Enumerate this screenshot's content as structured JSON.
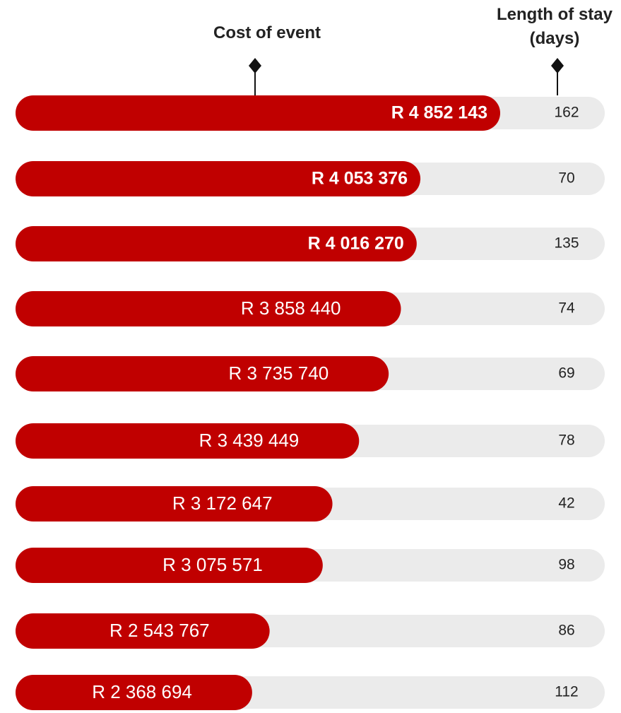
{
  "chart_data": {
    "type": "bar",
    "cost_header": "Cost of event",
    "stay_header": "Length of stay (days)",
    "values": [
      4852143,
      4053376,
      4016270,
      3858440,
      3735740,
      3439449,
      3172647,
      3075571,
      2543767,
      2368694
    ],
    "value_labels": [
      "R 4 852 143",
      "R 4 053 376",
      "R 4 016 270",
      "R 3 858 440",
      "R 3 735 740",
      "R 3 439 449",
      "R 3 172 647",
      "R 3 075 571",
      "R 2 543 767",
      "R 2 368 694"
    ],
    "stay": [
      162,
      70,
      135,
      74,
      69,
      78,
      42,
      98,
      86,
      112
    ],
    "color": "#c00000",
    "track_color": "#ebebeb"
  }
}
